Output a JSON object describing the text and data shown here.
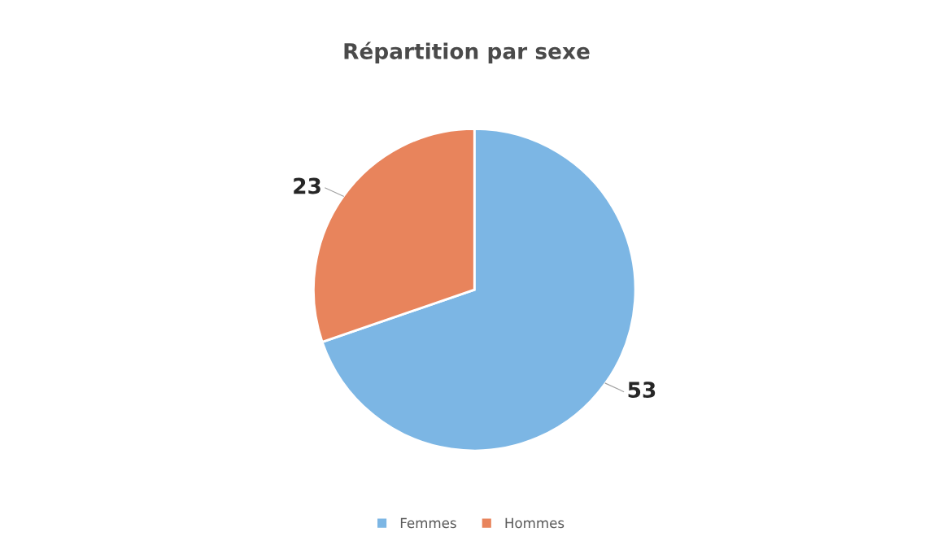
{
  "chart_data": {
    "type": "pie",
    "title": "Répartition par sexe",
    "categories": [
      "Femmes",
      "Hommes"
    ],
    "values": [
      53,
      23
    ],
    "colors": [
      "#7cb6e4",
      "#e8845c"
    ],
    "data_labels": true,
    "legend": "bottom"
  }
}
